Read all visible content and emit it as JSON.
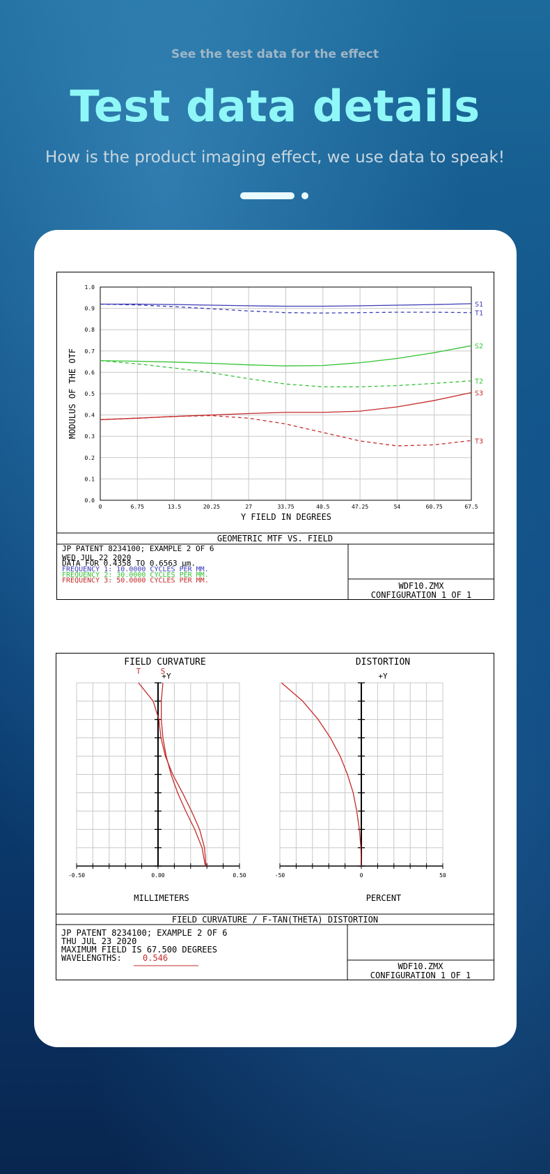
{
  "header": {
    "subtitle": "See the test data for the effect",
    "title": "Test data details",
    "description": "How is the product imaging effect, we use data to speak!"
  },
  "colors": {
    "s1": "#3a3ab8",
    "s2": "#33c233",
    "s3": "#c42a2a",
    "title": "#8ff7f7"
  },
  "mtf_info": {
    "title": "GEOMETRIC MTF VS. FIELD",
    "line1": "JP PATENT 8234100; EXAMPLE 2 OF 6",
    "line2": "WED JUL 22 2020",
    "line3": "DATA FOR 0.4358 TO 0.6563 µm.",
    "freq1": "FREQUENCY 1:   10.0000 CYCLES PER MM.",
    "freq2": "FREQUENCY 2:   30.0000 CYCLES PER MM.",
    "freq3": "FREQUENCY 3:   50.0000 CYCLES PER MM.",
    "file": "WDF10.ZMX",
    "config": "CONFIGURATION  1  OF  1"
  },
  "fc_info": {
    "title": "FIELD CURVATURE / F-TAN(THETA) DISTORTION",
    "line1": "JP PATENT 8234100; EXAMPLE 2 OF 6",
    "line2": "THU JUL 23 2020",
    "line3": "MAXIMUM FIELD IS 67.500 DEGREES",
    "wl_label": "WAVELENGTHS:",
    "wl_value": "0.546",
    "file": "WDF10.ZMX",
    "config": "CONFIGURATION  1  OF  1"
  },
  "chart_data": [
    {
      "type": "line",
      "title": "",
      "xlabel": "Y FIELD IN DEGREES",
      "ylabel": "MODULUS OF THE OTF",
      "xlim": [
        0,
        67.5
      ],
      "ylim": [
        0,
        1.0
      ],
      "grid": true,
      "x_ticks": [
        "0",
        "6.75",
        "13.5",
        "20.25",
        "27",
        "33.75",
        "40.5",
        "47.25",
        "54",
        "60.75",
        "67.5"
      ],
      "y_ticks": [
        "0.0",
        "0.1",
        "0.2",
        "0.3",
        "0.4",
        "0.5",
        "0.6",
        "0.7",
        "0.8",
        "0.9",
        "1.0"
      ],
      "x": [
        0,
        6.75,
        13.5,
        20.25,
        27,
        33.75,
        40.5,
        47.25,
        54,
        60.75,
        67.5
      ],
      "series": [
        {
          "name": "S1",
          "color": "#3a3ab8",
          "dashed": false,
          "values": [
            0.92,
            0.92,
            0.918,
            0.915,
            0.912,
            0.91,
            0.91,
            0.912,
            0.915,
            0.918,
            0.922
          ]
        },
        {
          "name": "T1",
          "color": "#3a3ab8",
          "dashed": true,
          "values": [
            0.92,
            0.916,
            0.908,
            0.898,
            0.888,
            0.88,
            0.878,
            0.88,
            0.882,
            0.882,
            0.88
          ]
        },
        {
          "name": "S2",
          "color": "#33c233",
          "dashed": false,
          "values": [
            0.655,
            0.652,
            0.648,
            0.642,
            0.635,
            0.63,
            0.632,
            0.645,
            0.665,
            0.692,
            0.725
          ]
        },
        {
          "name": "T2",
          "color": "#33c233",
          "dashed": true,
          "values": [
            0.655,
            0.64,
            0.62,
            0.598,
            0.57,
            0.545,
            0.532,
            0.532,
            0.538,
            0.548,
            0.56
          ]
        },
        {
          "name": "S3",
          "color": "#c42a2a",
          "dashed": false,
          "values": [
            0.378,
            0.385,
            0.393,
            0.4,
            0.407,
            0.412,
            0.412,
            0.418,
            0.438,
            0.468,
            0.505
          ]
        },
        {
          "name": "T3",
          "color": "#c42a2a",
          "dashed": true,
          "values": [
            0.378,
            0.385,
            0.393,
            0.397,
            0.385,
            0.358,
            0.318,
            0.278,
            0.255,
            0.26,
            0.28
          ]
        }
      ]
    },
    {
      "type": "line",
      "title": "FIELD CURVATURE",
      "xlabel": "MILLIMETERS",
      "ylabel": "+Y",
      "xlim": [
        -0.5,
        0.5
      ],
      "ylim": [
        0,
        1
      ],
      "grid": true,
      "x_ticks": [
        "-0.50",
        "0.00",
        "0.50"
      ],
      "series": [
        {
          "name": "T",
          "color": "#c42a2a",
          "points": [
            [
              0.295,
              0
            ],
            [
              0.285,
              0.1
            ],
            [
              0.255,
              0.2
            ],
            [
              0.205,
              0.3
            ],
            [
              0.15,
              0.4
            ],
            [
              0.09,
              0.5
            ],
            [
              0.045,
              0.6
            ],
            [
              0.018,
              0.7
            ],
            [
              0.005,
              0.8
            ],
            [
              -0.03,
              0.9
            ],
            [
              -0.12,
              1.0
            ]
          ]
        },
        {
          "name": "S",
          "color": "#c42a2a",
          "points": [
            [
              0.29,
              0
            ],
            [
              0.27,
              0.1
            ],
            [
              0.225,
              0.2
            ],
            [
              0.17,
              0.3
            ],
            [
              0.12,
              0.4
            ],
            [
              0.08,
              0.5
            ],
            [
              0.05,
              0.6
            ],
            [
              0.03,
              0.7
            ],
            [
              0.02,
              0.8
            ],
            [
              0.02,
              0.9
            ],
            [
              0.03,
              1.0
            ]
          ]
        }
      ]
    },
    {
      "type": "line",
      "title": "DISTORTION",
      "xlabel": "PERCENT",
      "ylabel": "+Y",
      "xlim": [
        -50,
        50
      ],
      "ylim": [
        0,
        1
      ],
      "grid": true,
      "x_ticks": [
        "-50",
        "0",
        "50"
      ],
      "series": [
        {
          "name": "",
          "color": "#c42a2a",
          "points": [
            [
              0,
              0
            ],
            [
              -0.3,
              0.1
            ],
            [
              -1.2,
              0.2
            ],
            [
              -2.8,
              0.3
            ],
            [
              -5.0,
              0.4
            ],
            [
              -8.5,
              0.5
            ],
            [
              -13,
              0.6
            ],
            [
              -19,
              0.7
            ],
            [
              -26.5,
              0.8
            ],
            [
              -36,
              0.9
            ],
            [
              -49,
              1.0
            ]
          ]
        }
      ]
    }
  ]
}
